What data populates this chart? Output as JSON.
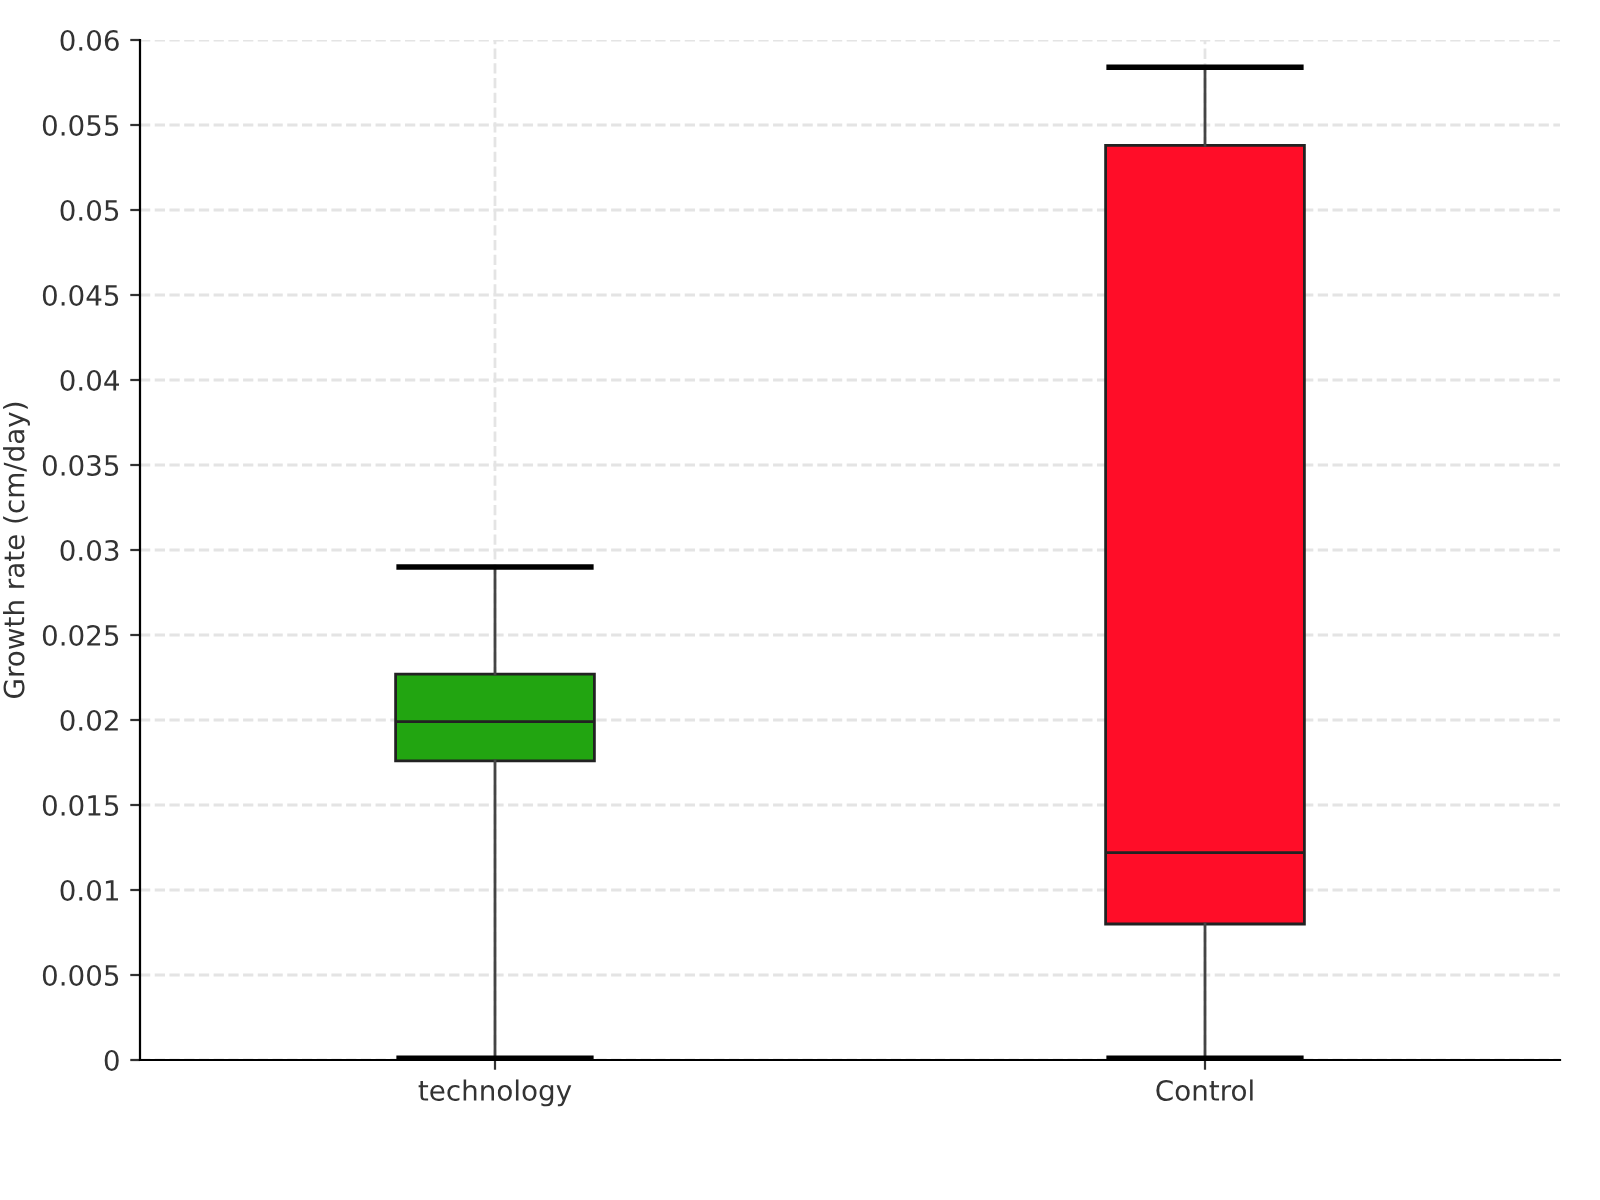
{
  "chart_data": {
    "type": "box",
    "ylabel": "Growth rate (cm/day)",
    "categories": [
      "technology",
      "Control"
    ],
    "boxes": [
      {
        "low": 0.0001,
        "q1": 0.0176,
        "median": 0.0199,
        "q3": 0.0227,
        "high": 0.029
      },
      {
        "low": 0.0001,
        "q1": 0.008,
        "median": 0.0122,
        "q3": 0.0538,
        "high": 0.0584
      }
    ],
    "colors": [
      "#22a511",
      "#ff0d28"
    ],
    "ylim": [
      0,
      0.06
    ],
    "yticks": [
      0,
      0.005,
      0.01,
      0.015,
      0.02,
      0.025,
      0.03,
      0.035,
      0.04,
      0.045,
      0.05,
      0.055,
      0.06
    ],
    "grid": true,
    "legend": false
  }
}
